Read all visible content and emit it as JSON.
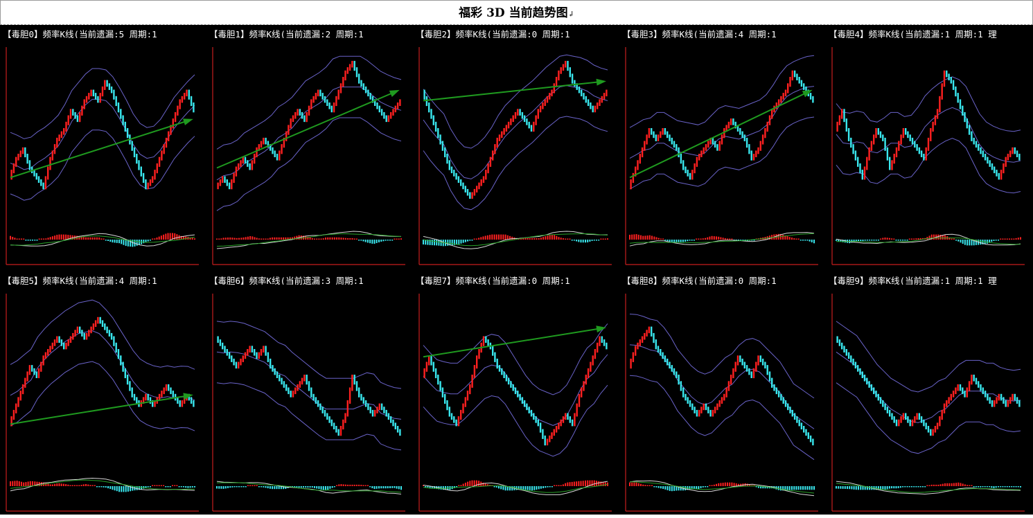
{
  "page": {
    "title": "福彩 3D 当前趋势图",
    "title_mark": "↲"
  },
  "colors": {
    "background": "#000000",
    "axis": "#c81e1e",
    "up_candle": "#ff2020",
    "down_candle": "#39e7ee",
    "band": "#6a63c9",
    "trend_arrow": "#1f9a1f",
    "osc_white": "#d9d9d9",
    "osc_green": "#29a329",
    "osc_red_bar": "#ff2020",
    "osc_cyan_bar": "#39e7ee"
  },
  "panels": [
    {
      "header": "【毒胆0】频率K线(当前遗漏:5 周期:1"
    },
    {
      "header": "【毒胆1】频率K线(当前遗漏:2 周期:1"
    },
    {
      "header": "【毒胆2】频率K线(当前遗漏:0 周期:1"
    },
    {
      "header": "【毒胆3】频率K线(当前遗漏:4 周期:1"
    },
    {
      "header": "【毒胆4】频率K线(当前遗漏:1 周期:1 理"
    },
    {
      "header": "【毒胆5】频率K线(当前遗漏:4 周期:1"
    },
    {
      "header": "【毒胆6】频率K线(当前遗漏:3 周期:1"
    },
    {
      "header": "【毒胆7】频率K线(当前遗漏:0 周期:1"
    },
    {
      "header": "【毒胆8】频率K线(当前遗漏:0 周期:1"
    },
    {
      "header": "【毒胆9】频率K线(当前遗漏:1 周期:1 理"
    }
  ],
  "chart_data": [
    {
      "type": "line",
      "title": "【毒胆0】频率K线(当前遗漏:5 周期:1",
      "series": [
        {
          "values": [
            3,
            5,
            6,
            4,
            3,
            2,
            5,
            7,
            8,
            10,
            9,
            11,
            12,
            11,
            13,
            12,
            10,
            8,
            6,
            4,
            2,
            3,
            5,
            7,
            9,
            11,
            12,
            10
          ]
        }
      ],
      "trend": [
        3,
        9
      ]
    },
    {
      "type": "line",
      "title": "【毒胆1】频率K线(当前遗漏:2 周期:1",
      "series": [
        {
          "values": [
            2,
            3,
            2,
            4,
            5,
            4,
            6,
            7,
            6,
            5,
            7,
            9,
            10,
            9,
            11,
            12,
            11,
            10,
            12,
            14,
            15,
            13,
            12,
            11,
            10,
            9,
            10,
            11
          ]
        }
      ],
      "trend": [
        4,
        12
      ]
    },
    {
      "type": "line",
      "title": "【毒胆2】频率K线(当前遗漏:0 周期:1",
      "series": [
        {
          "values": [
            12,
            10,
            8,
            6,
            4,
            3,
            2,
            1,
            2,
            3,
            5,
            7,
            8,
            9,
            10,
            9,
            8,
            10,
            11,
            12,
            14,
            15,
            13,
            12,
            11,
            10,
            11,
            12
          ]
        }
      ],
      "trend": [
        11,
        13
      ]
    },
    {
      "type": "line",
      "title": "【毒胆3】频率K线(当前遗漏:4 周期:1",
      "series": [
        {
          "values": [
            2,
            4,
            6,
            8,
            7,
            8,
            7,
            6,
            4,
            3,
            5,
            6,
            7,
            6,
            8,
            9,
            8,
            7,
            5,
            6,
            8,
            10,
            11,
            12,
            14,
            13,
            12,
            11
          ]
        }
      ],
      "trend": [
        3,
        12
      ]
    },
    {
      "type": "line",
      "title": "【毒胆4】频率K线(当前遗漏:1 周期:1 理",
      "series": [
        {
          "values": [
            8,
            10,
            7,
            5,
            3,
            6,
            8,
            7,
            4,
            6,
            8,
            7,
            6,
            5,
            8,
            10,
            14,
            13,
            11,
            9,
            7,
            6,
            5,
            4,
            3,
            5,
            6,
            5
          ]
        }
      ],
      "trend": null
    },
    {
      "type": "line",
      "title": "【毒胆5】频率K线(当前遗漏:4 周期:1",
      "series": [
        {
          "values": [
            3,
            5,
            7,
            9,
            8,
            10,
            11,
            12,
            11,
            12,
            13,
            12,
            13,
            14,
            13,
            12,
            10,
            8,
            6,
            5,
            6,
            5,
            6,
            7,
            6,
            5,
            6,
            5
          ]
        }
      ],
      "trend": [
        3,
        6
      ]
    },
    {
      "type": "line",
      "title": "【毒胆6】频率K线(当前遗漏:3 周期:1",
      "series": [
        {
          "values": [
            12,
            11,
            10,
            9,
            10,
            11,
            10,
            11,
            9,
            8,
            7,
            6,
            7,
            8,
            6,
            5,
            4,
            3,
            2,
            4,
            8,
            6,
            5,
            4,
            5,
            4,
            3,
            2
          ]
        }
      ],
      "trend": null
    },
    {
      "type": "line",
      "title": "【毒胆7】频率K线(当前遗漏:0 周期:1",
      "series": [
        {
          "values": [
            8,
            10,
            8,
            6,
            4,
            3,
            5,
            7,
            10,
            12,
            11,
            9,
            8,
            7,
            6,
            5,
            4,
            3,
            1,
            2,
            3,
            4,
            3,
            6,
            8,
            10,
            12,
            11
          ]
        }
      ],
      "trend": [
        10,
        13
      ]
    },
    {
      "type": "line",
      "title": "【毒胆8】频率K线(当前遗漏:0 周期:1",
      "series": [
        {
          "values": [
            9,
            11,
            12,
            13,
            11,
            10,
            9,
            8,
            6,
            5,
            4,
            5,
            4,
            5,
            6,
            8,
            10,
            9,
            8,
            10,
            9,
            7,
            6,
            5,
            4,
            3,
            2,
            1
          ]
        }
      ],
      "trend": null
    },
    {
      "type": "line",
      "title": "【毒胆9】频率K线(当前遗漏:1 周期:1 理",
      "series": [
        {
          "values": [
            12,
            11,
            10,
            9,
            8,
            7,
            6,
            5,
            4,
            3,
            4,
            3,
            4,
            3,
            2,
            3,
            5,
            6,
            7,
            6,
            8,
            7,
            6,
            5,
            6,
            5,
            6,
            5
          ]
        }
      ],
      "trend": null
    }
  ]
}
